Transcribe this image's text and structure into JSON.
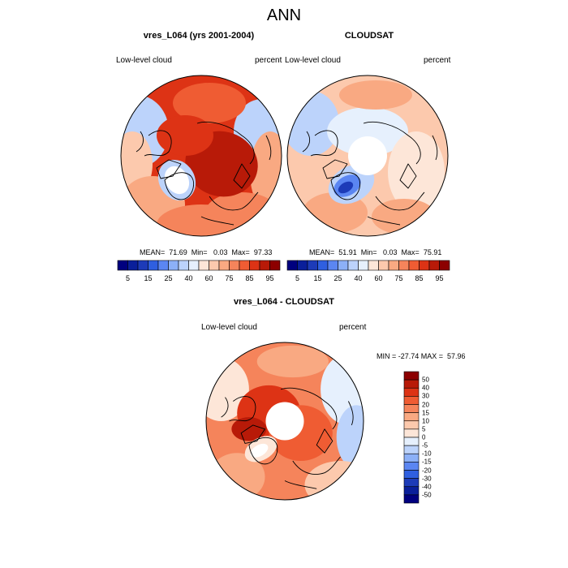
{
  "main_title": "ANN",
  "panels": [
    {
      "title": "vres_L064 (yrs 2001-2004)",
      "left_label": "Low-level cloud",
      "right_label": "percent",
      "stats": "MEAN=  71.69  Min=   0.03  Max=  97.33"
    },
    {
      "title": "CLOUDSAT",
      "left_label": "Low-level cloud",
      "right_label": "percent",
      "stats": "MEAN=  51.91  Min=   0.03  Max=  75.91"
    },
    {
      "title": "vres_L064 - CLOUDSAT",
      "left_label": "Low-level cloud",
      "right_label": "percent",
      "stats": "MIN = -27.74 MAX =  57.96"
    }
  ],
  "colorbar_horizontal": {
    "colors": [
      "#00007f",
      "#0a1f9a",
      "#1d3bb8",
      "#2f5fe0",
      "#5b86f2",
      "#8cb0f7",
      "#bcd3fb",
      "#e6f0fd",
      "#fde6d8",
      "#fcc9ad",
      "#f9a982",
      "#f5845b",
      "#ef5c33",
      "#dd3315",
      "#b81a08",
      "#8c0000"
    ],
    "tick_labels": [
      "5",
      "15",
      "25",
      "40",
      "60",
      "75",
      "85",
      "95"
    ]
  },
  "colorbar_vertical": {
    "colors": [
      "#8c0000",
      "#b81a08",
      "#dd3315",
      "#ef5c33",
      "#f5845b",
      "#f9a982",
      "#fcc9ad",
      "#fde6d8",
      "#e6f0fd",
      "#bcd3fb",
      "#8cb0f7",
      "#5b86f2",
      "#2f5fe0",
      "#1d3bb8",
      "#0a1f9a",
      "#00007f"
    ],
    "tick_labels": [
      "50",
      "40",
      "30",
      "20",
      "15",
      "10",
      "5",
      "0",
      "-5",
      "-10",
      "-15",
      "-20",
      "-30",
      "-40",
      "-50"
    ]
  },
  "map_colors": {
    "deep_red": "#b81a08",
    "red": "#dd3315",
    "orange_red": "#ef5c33",
    "orange": "#f5845b",
    "salmon": "#f9a982",
    "peach": "#fcc9ad",
    "pale_pink": "#fde6d8",
    "pale_blue": "#e6f0fd",
    "light_blue": "#bcd3fb",
    "blue": "#5b86f2",
    "dark_blue": "#1d3bb8",
    "missing": "#ffffff"
  }
}
